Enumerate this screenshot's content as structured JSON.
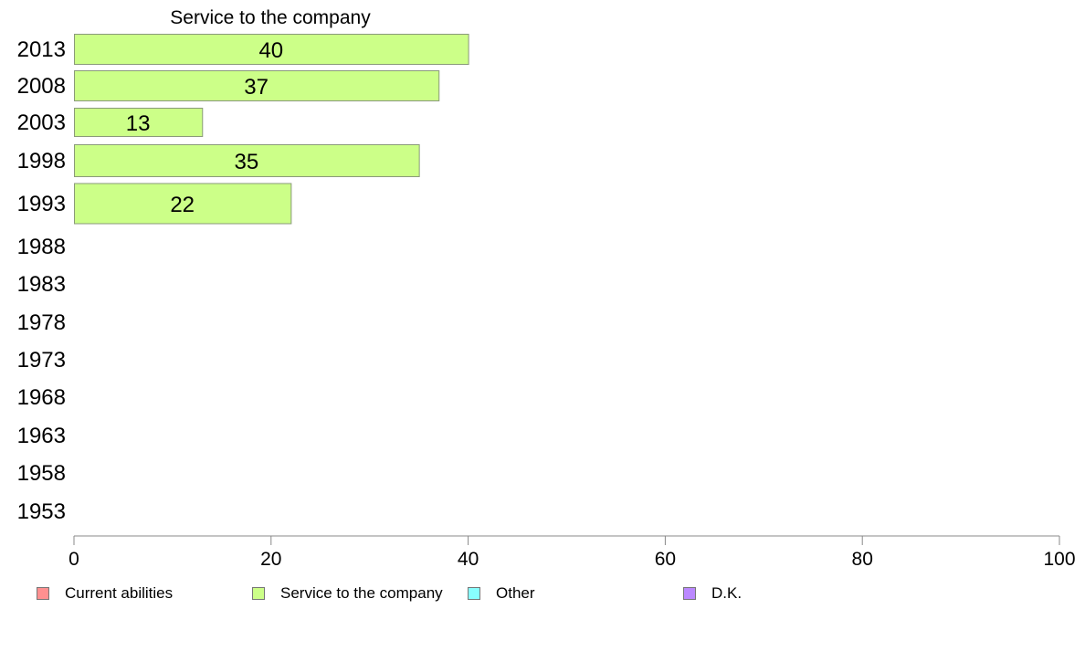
{
  "chart_data": {
    "type": "bar",
    "orientation": "horizontal",
    "title": "Service to the company",
    "categories": [
      "2013",
      "2008",
      "2003",
      "1998",
      "1993",
      "1988",
      "1983",
      "1978",
      "1973",
      "1968",
      "1963",
      "1958",
      "1953"
    ],
    "series": [
      {
        "name": "Service to the company",
        "color": "#ccff88",
        "values": [
          40,
          37,
          13,
          35,
          22,
          null,
          null,
          null,
          null,
          null,
          null,
          null,
          null
        ]
      }
    ],
    "data_labels": [
      "40",
      "37",
      "13",
      "35",
      "22",
      "",
      "",
      "",
      "",
      "",
      "",
      "",
      ""
    ],
    "xlim": [
      0,
      100
    ],
    "xticks": [
      0,
      20,
      40,
      60,
      80,
      100
    ],
    "xtick_labels": [
      "0",
      "20",
      "40",
      "60",
      "80",
      "100"
    ],
    "grid": false,
    "legend_position": "bottom",
    "legend": [
      {
        "label": "Current abilities",
        "color": "#ff9090"
      },
      {
        "label": "Service to the company",
        "color": "#ccff88"
      },
      {
        "label": "Other",
        "color": "#88ffff"
      },
      {
        "label": "D.K.",
        "color": "#bb88ff"
      }
    ]
  }
}
